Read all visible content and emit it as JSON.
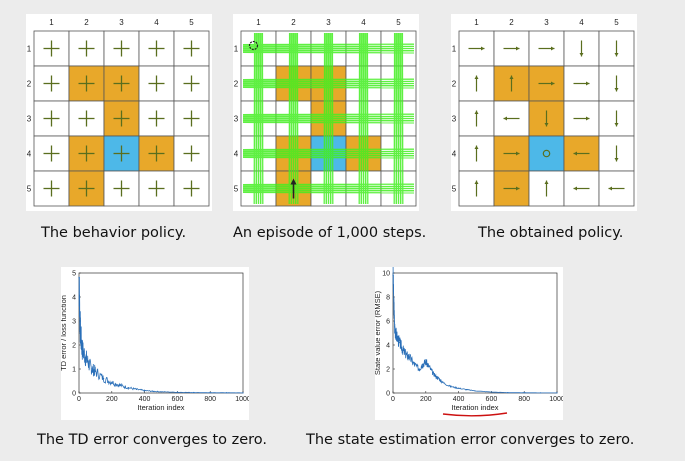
{
  "colors": {
    "page_bg": "#ececec",
    "forbidden": "#e8a82a",
    "target": "#4db8e8",
    "grid_line": "#555555",
    "cross": "#5a6e1e",
    "arrow": "#5a6e1e",
    "episode_green": "#44ee22",
    "curve": "#2a6fb8",
    "annotation_red": "#cc1111"
  },
  "grid": {
    "col_labels": [
      "1",
      "2",
      "3",
      "4",
      "5"
    ],
    "row_labels": [
      "1",
      "2",
      "3",
      "4",
      "5"
    ],
    "cells": [
      [
        "w",
        "w",
        "w",
        "w",
        "w"
      ],
      [
        "w",
        "f",
        "f",
        "w",
        "w"
      ],
      [
        "w",
        "w",
        "f",
        "w",
        "w"
      ],
      [
        "w",
        "f",
        "t",
        "f",
        "w"
      ],
      [
        "w",
        "f",
        "w",
        "w",
        "w"
      ]
    ]
  },
  "obtained_policy": [
    [
      "right",
      "right",
      "right",
      "down",
      "down"
    ],
    [
      "up",
      "up",
      "right",
      "right",
      "down"
    ],
    [
      "up",
      "left",
      "down",
      "right",
      "down"
    ],
    [
      "up",
      "right",
      "stay",
      "left",
      "down"
    ],
    [
      "up",
      "right",
      "up",
      "left",
      "left"
    ]
  ],
  "captions": {
    "behavior": "The behavior policy.",
    "episode": "An episode of 1,000 steps.",
    "obtained": "The obtained policy.",
    "td": "The TD error converges to zero.",
    "state": "The state estimation error converges to zero."
  },
  "chart_data": [
    {
      "type": "line",
      "title": "",
      "xlabel": "Iteration index",
      "ylabel": "TD error / loss function",
      "xlim": [
        0,
        1000
      ],
      "ylim": [
        0,
        5
      ],
      "xticks": [
        "0",
        "200",
        "400",
        "600",
        "800",
        "1000"
      ],
      "yticks": [
        "0",
        "1",
        "2",
        "3",
        "4",
        "5"
      ],
      "grid": false,
      "x": [
        0,
        5,
        10,
        20,
        40,
        60,
        80,
        100,
        150,
        200,
        250,
        300,
        350,
        400,
        450,
        500,
        600,
        700,
        800,
        900,
        1000
      ],
      "y": [
        4.8,
        3.2,
        2.4,
        1.8,
        1.5,
        1.2,
        1.0,
        0.9,
        0.6,
        0.45,
        0.32,
        0.22,
        0.15,
        0.1,
        0.07,
        0.05,
        0.03,
        0.02,
        0.01,
        0.01,
        0.005
      ]
    },
    {
      "type": "line",
      "title": "",
      "xlabel": "Iteration index",
      "ylabel": "State value error (RMSE)",
      "xlim": [
        0,
        1000
      ],
      "ylim": [
        0,
        10
      ],
      "xticks": [
        "0",
        "200",
        "400",
        "600",
        "800",
        "1000"
      ],
      "yticks": [
        "0",
        "2",
        "4",
        "6",
        "8",
        "10"
      ],
      "grid": false,
      "x": [
        0,
        5,
        10,
        20,
        40,
        60,
        80,
        100,
        130,
        160,
        180,
        200,
        220,
        250,
        280,
        300,
        350,
        400,
        450,
        500,
        600,
        700,
        800,
        900,
        1000
      ],
      "y": [
        9.8,
        7.5,
        5.5,
        4.8,
        4.2,
        3.6,
        3.2,
        3.0,
        2.4,
        2.0,
        2.4,
        2.6,
        2.2,
        1.5,
        1.2,
        0.9,
        0.55,
        0.4,
        0.28,
        0.18,
        0.08,
        0.03,
        0.02,
        0.01,
        0.01
      ]
    }
  ]
}
